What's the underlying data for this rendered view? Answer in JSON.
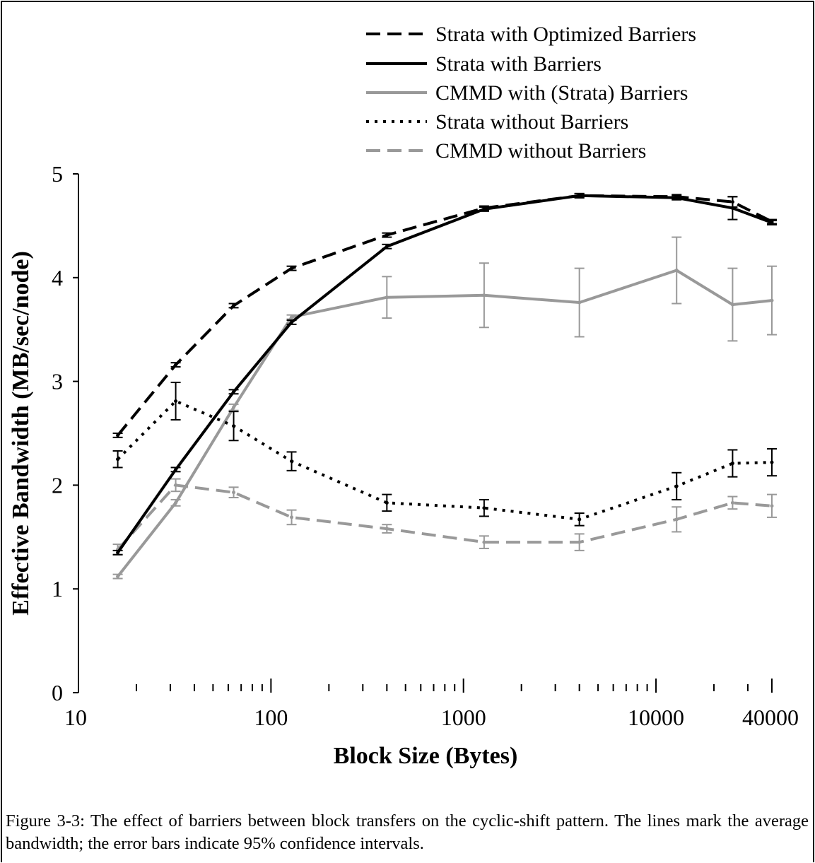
{
  "chart_data": {
    "type": "line",
    "title": "",
    "xlabel": "Block Size (Bytes)",
    "ylabel": "Effective Bandwidth (MB/sec/node)",
    "xscale": "log",
    "xlim": [
      10,
      40000
    ],
    "ylim": [
      0,
      5
    ],
    "xticks": [
      {
        "value": 10,
        "label": "10"
      },
      {
        "value": 100,
        "label": "100"
      },
      {
        "value": 1000,
        "label": "1000"
      },
      {
        "value": 10000,
        "label": "10000"
      },
      {
        "value": 40000,
        "label": "40000"
      }
    ],
    "yticks": [
      {
        "value": 0,
        "label": "0"
      },
      {
        "value": 1,
        "label": "1"
      },
      {
        "value": 2,
        "label": "2"
      },
      {
        "value": 3,
        "label": "3"
      },
      {
        "value": 4,
        "label": "4"
      },
      {
        "value": 5,
        "label": "5"
      }
    ],
    "grid": false,
    "legend_position": "top-right",
    "series": [
      {
        "name": "Strata with Optimized Barriers",
        "color": "#000000",
        "style": "dashed",
        "x": [
          16,
          32,
          64,
          128,
          400,
          1280,
          4000,
          12800,
          25000,
          40000
        ],
        "y": [
          2.48,
          3.16,
          3.73,
          4.09,
          4.41,
          4.67,
          4.79,
          4.78,
          4.73,
          4.54
        ],
        "err": [
          0.02,
          0.02,
          0.02,
          0.02,
          0.02,
          0.02,
          0.02,
          0.02,
          0.05,
          0.02
        ]
      },
      {
        "name": "Strata with Barriers",
        "color": "#000000",
        "style": "solid",
        "x": [
          16,
          32,
          64,
          128,
          400,
          1280,
          4000,
          12800,
          25000,
          40000
        ],
        "y": [
          1.35,
          2.15,
          2.9,
          3.57,
          4.3,
          4.66,
          4.79,
          4.77,
          4.67,
          4.53
        ],
        "err": [
          0.02,
          0.02,
          0.02,
          0.02,
          0.02,
          0.02,
          0.02,
          0.02,
          0.11,
          0.02
        ]
      },
      {
        "name": "CMMD with (Strata) Barriers",
        "color": "#999999",
        "style": "solid",
        "x": [
          16,
          32,
          64,
          128,
          400,
          1280,
          4000,
          12800,
          25000,
          40000
        ],
        "y": [
          1.12,
          1.83,
          2.75,
          3.62,
          3.81,
          3.83,
          3.76,
          4.07,
          3.74,
          3.78
        ],
        "err": [
          0.02,
          0.03,
          0.03,
          0.02,
          0.2,
          0.31,
          0.33,
          0.32,
          0.35,
          0.33
        ]
      },
      {
        "name": "Strata without Barriers",
        "color": "#000000",
        "style": "dotted",
        "x": [
          16,
          32,
          64,
          128,
          400,
          1280,
          4000,
          12800,
          25000,
          40000
        ],
        "y": [
          2.25,
          2.81,
          2.57,
          2.23,
          1.83,
          1.78,
          1.67,
          1.99,
          2.21,
          2.22
        ],
        "err": [
          0.08,
          0.18,
          0.14,
          0.09,
          0.08,
          0.08,
          0.06,
          0.13,
          0.13,
          0.13
        ]
      },
      {
        "name": "CMMD without Barriers",
        "color": "#999999",
        "style": "dashed",
        "x": [
          16,
          32,
          64,
          128,
          400,
          1280,
          4000,
          12800,
          25000,
          40000
        ],
        "y": [
          1.38,
          2.0,
          1.93,
          1.69,
          1.58,
          1.45,
          1.45,
          1.67,
          1.83,
          1.8
        ],
        "err": [
          0.05,
          0.06,
          0.05,
          0.07,
          0.04,
          0.06,
          0.08,
          0.12,
          0.06,
          0.11
        ]
      }
    ]
  },
  "caption": "Figure 3-3:  The effect of barriers between block transfers on the cyclic-shift pattern.  The lines mark the average bandwidth; the error bars indicate 95% confidence intervals."
}
